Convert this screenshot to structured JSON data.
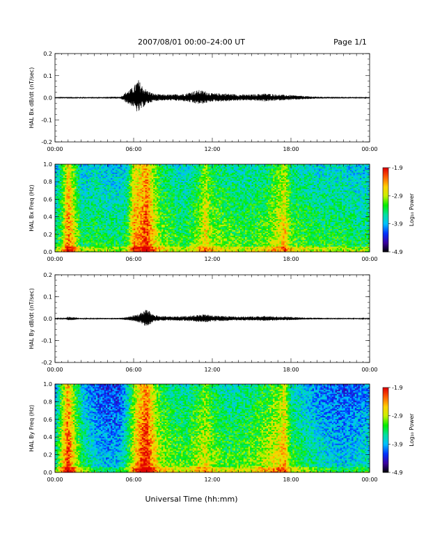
{
  "header": {
    "title": "2007/08/01   00:00–24:00 UT",
    "page_label": "Page 1/1"
  },
  "footer": {
    "xlabel": "Universal Time (hh:mm)"
  },
  "colorbar": {
    "label": "Log₁₀ Power",
    "ticks": [
      "-1.9",
      "-2.9",
      "-3.9",
      "-4.9"
    ],
    "range": [
      -4.9,
      -1.9
    ],
    "colors": [
      "#000000",
      "#3a00a0",
      "#0033ff",
      "#00c0ff",
      "#00e0a0",
      "#00ee00",
      "#c8f000",
      "#ffd000",
      "#ff6000",
      "#e00000"
    ]
  },
  "chart_data": [
    {
      "type": "line",
      "ylabel": "HAL Bx dB/dt (nT/sec)",
      "xlim": [
        "00:00",
        "24:00"
      ],
      "ylim": [
        -0.2,
        0.2
      ],
      "x_ticks": [
        "00:00",
        "06:00",
        "12:00",
        "18:00",
        "00:00"
      ],
      "y_ticks": [
        "-0.2",
        "-0.1",
        "0.0",
        "0.1",
        "0.2"
      ],
      "series": [
        {
          "x": [
            "00:00",
            "01:00",
            "02:00",
            "03:00",
            "04:00",
            "05:00",
            "05:30",
            "06:00",
            "06:20",
            "06:40",
            "07:00",
            "07:30",
            "08:00",
            "09:00",
            "10:00",
            "10:30",
            "11:00",
            "11:30",
            "12:00",
            "13:00",
            "14:00",
            "15:00",
            "16:00",
            "17:00",
            "18:00",
            "19:00",
            "20:00",
            "21:00",
            "22:00",
            "23:00",
            "24:00"
          ],
          "values": [
            0.003,
            0.004,
            0.003,
            0.003,
            0.004,
            0.005,
            0.03,
            0.05,
            0.085,
            0.055,
            0.035,
            0.02,
            0.015,
            0.015,
            0.02,
            0.03,
            0.035,
            0.03,
            0.02,
            0.02,
            0.015,
            0.015,
            0.02,
            0.015,
            0.012,
            0.008,
            0.005,
            0.004,
            0.004,
            0.003,
            0.003
          ]
        }
      ]
    },
    {
      "type": "heatmap",
      "ylabel": "HAL Bx Freq (Hz)",
      "xlim": [
        "00:00",
        "24:00"
      ],
      "ylim": [
        0.0,
        1.0
      ],
      "x_ticks": [
        "00:00",
        "06:00",
        "12:00",
        "18:00",
        "00:00"
      ],
      "y_ticks": [
        "0.0",
        "0.2",
        "0.4",
        "0.6",
        "0.8",
        "1.0"
      ],
      "value_range": [
        -4.9,
        -1.9
      ],
      "time_profile": {
        "x": [
          "00:00",
          "00:30",
          "01:00",
          "01:30",
          "02:00",
          "03:00",
          "04:00",
          "05:00",
          "05:30",
          "06:00",
          "06:30",
          "07:00",
          "07:30",
          "08:00",
          "09:00",
          "10:00",
          "11:00",
          "11:30",
          "12:00",
          "13:00",
          "14:00",
          "15:00",
          "16:00",
          "17:00",
          "17:30",
          "18:00",
          "19:00",
          "20:00",
          "21:00",
          "22:00",
          "23:00",
          "24:00"
        ],
        "values": [
          -3.7,
          -3.3,
          -2.4,
          -3.0,
          -3.6,
          -3.5,
          -3.6,
          -3.6,
          -3.5,
          -2.6,
          -2.5,
          -2.2,
          -2.8,
          -3.2,
          -3.4,
          -3.5,
          -3.2,
          -2.8,
          -3.2,
          -3.3,
          -3.4,
          -3.4,
          -3.3,
          -3.0,
          -2.7,
          -3.3,
          -3.4,
          -3.5,
          -3.5,
          -3.5,
          -3.6,
          -3.6
        ]
      }
    },
    {
      "type": "line",
      "ylabel": "HAL By dB/dt (nT/sec)",
      "xlim": [
        "00:00",
        "24:00"
      ],
      "ylim": [
        -0.2,
        0.2
      ],
      "x_ticks": [
        "00:00",
        "06:00",
        "12:00",
        "18:00",
        "00:00"
      ],
      "y_ticks": [
        "-0.2",
        "-0.1",
        "0.0",
        "0.1",
        "0.2"
      ],
      "series": [
        {
          "x": [
            "00:00",
            "00:50",
            "01:00",
            "02:00",
            "03:00",
            "04:00",
            "05:00",
            "05:30",
            "06:00",
            "06:30",
            "07:00",
            "07:30",
            "08:00",
            "09:00",
            "10:00",
            "11:00",
            "11:30",
            "12:00",
            "13:00",
            "14:00",
            "15:00",
            "16:00",
            "17:00",
            "18:00",
            "19:00",
            "20:00",
            "21:00",
            "22:00",
            "23:00",
            "24:00"
          ],
          "values": [
            0.002,
            0.003,
            0.01,
            0.003,
            0.003,
            0.003,
            0.004,
            0.008,
            0.015,
            0.025,
            0.045,
            0.02,
            0.012,
            0.01,
            0.012,
            0.018,
            0.02,
            0.015,
            0.012,
            0.01,
            0.01,
            0.012,
            0.01,
            0.008,
            0.005,
            0.004,
            0.003,
            0.003,
            0.003,
            0.002
          ]
        }
      ]
    },
    {
      "type": "heatmap",
      "ylabel": "HAL By Freq (Hz)",
      "xlim": [
        "00:00",
        "24:00"
      ],
      "ylim": [
        0.0,
        1.0
      ],
      "x_ticks": [
        "00:00",
        "06:00",
        "12:00",
        "18:00",
        "00:00"
      ],
      "y_ticks": [
        "0.0",
        "0.2",
        "0.4",
        "0.6",
        "0.8",
        "1.0"
      ],
      "value_range": [
        -4.9,
        -1.9
      ],
      "time_profile": {
        "x": [
          "00:00",
          "00:30",
          "01:00",
          "01:30",
          "02:00",
          "03:00",
          "04:00",
          "05:00",
          "05:30",
          "06:00",
          "06:30",
          "07:00",
          "07:30",
          "08:00",
          "09:00",
          "10:00",
          "11:00",
          "11:30",
          "12:00",
          "13:00",
          "14:00",
          "15:00",
          "16:00",
          "17:00",
          "17:30",
          "18:00",
          "19:00",
          "20:00",
          "21:00",
          "22:00",
          "23:00",
          "24:00"
        ],
        "values": [
          -3.8,
          -3.0,
          -2.2,
          -3.0,
          -3.5,
          -3.9,
          -4.1,
          -4.0,
          -3.6,
          -2.9,
          -2.4,
          -2.1,
          -2.7,
          -3.1,
          -3.3,
          -3.4,
          -3.1,
          -2.9,
          -3.2,
          -3.4,
          -3.4,
          -3.3,
          -3.1,
          -2.9,
          -2.6,
          -3.4,
          -3.6,
          -3.8,
          -3.9,
          -4.0,
          -3.9,
          -3.8
        ]
      }
    }
  ]
}
